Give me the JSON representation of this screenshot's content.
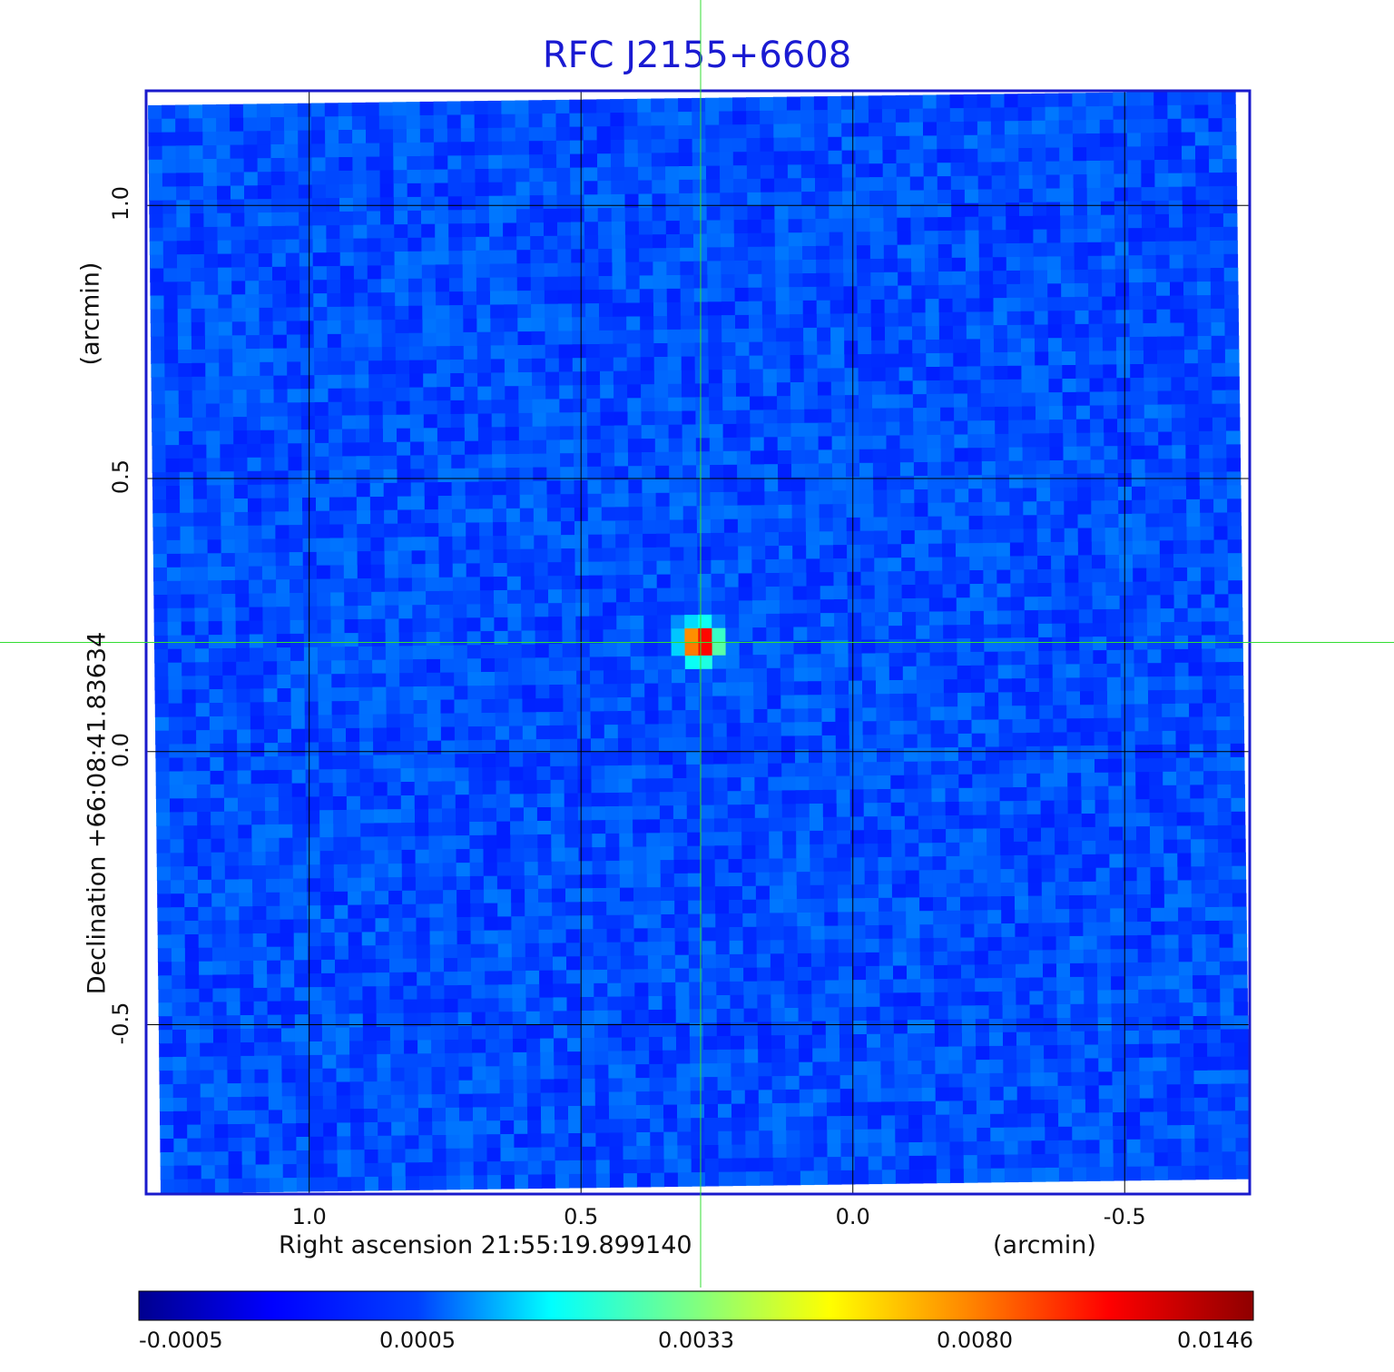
{
  "chart_data": {
    "type": "heatmap",
    "title": "RFC J2155+6608",
    "xlabel": "Right ascension  21:55:19.899140",
    "xunit": "(arcmin)",
    "ylabel": "Declination  +66:08:41.83634",
    "yunit": "(arcmin)",
    "x_ticks": [
      "1.0",
      "0.5",
      "0.0",
      "-0.5"
    ],
    "x_tick_values": [
      1.0,
      0.5,
      0.0,
      -0.5
    ],
    "y_ticks": [
      "1.0",
      "0.5",
      "0.0",
      "-0.5"
    ],
    "y_tick_values": [
      1.0,
      0.5,
      0.0,
      -0.5
    ],
    "xlim": [
      1.3,
      -0.73
    ],
    "ylim": [
      -0.81,
      1.21
    ],
    "grid": true,
    "colormap": "jet",
    "colorbar_ticks": [
      "-0.0005",
      "0.0005",
      "0.0033",
      "0.0080",
      "0.0146"
    ],
    "colorbar_values": [
      -0.0005,
      0.0005,
      0.0033,
      0.008,
      0.0146
    ],
    "source": {
      "x": 0.28,
      "y": 0.2,
      "peak": 0.0146
    },
    "crosshair": {
      "x": 0.28,
      "y": 0.2,
      "color": "#33dd33"
    },
    "frame_color": "#1a1acc",
    "background_level": 0.0
  }
}
